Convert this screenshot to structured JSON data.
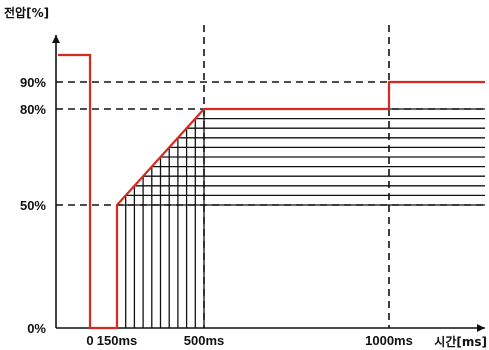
{
  "chart_data": {
    "type": "line",
    "title": "",
    "ylabel": "전압[%]",
    "xlabel": "시간[ms]",
    "xlim": [
      -40,
      1150
    ],
    "ylim": [
      0,
      100
    ],
    "x_ticks": [
      {
        "value": 0,
        "label": "0"
      },
      {
        "value": 150,
        "label": "150ms"
      },
      {
        "value": 500,
        "label": "500ms"
      },
      {
        "value": 1000,
        "label": "1000ms"
      }
    ],
    "y_ticks": [
      {
        "value": 0,
        "label": "0%"
      },
      {
        "value": 50,
        "label": "50%"
      },
      {
        "value": 80,
        "label": "80%"
      },
      {
        "value": 90,
        "label": "90%"
      }
    ],
    "reference_lines": {
      "horizontal": [
        50,
        80,
        90
      ],
      "vertical": [
        500,
        1000
      ]
    },
    "series": [
      {
        "color": "#d42a1f",
        "points": [
          {
            "x": -40,
            "y": 100
          },
          {
            "x": 0,
            "y": 100
          },
          {
            "x": 0,
            "y": 0
          },
          {
            "x": 150,
            "y": 0
          },
          {
            "x": 150,
            "y": 50
          },
          {
            "x": 500,
            "y": 80
          },
          {
            "x": 1000,
            "y": 80
          },
          {
            "x": 1000,
            "y": 90
          },
          {
            "x": 1150,
            "y": 90
          }
        ]
      }
    ],
    "steps": [
      {
        "start": 150,
        "level": 50
      },
      {
        "start": 185,
        "level": 53
      },
      {
        "start": 220,
        "level": 56
      },
      {
        "start": 255,
        "level": 59
      },
      {
        "start": 290,
        "level": 62
      },
      {
        "start": 325,
        "level": 65
      },
      {
        "start": 360,
        "level": 68
      },
      {
        "start": 395,
        "level": 71
      },
      {
        "start": 430,
        "level": 74
      },
      {
        "start": 465,
        "level": 77
      },
      {
        "start": 500,
        "level": 80
      }
    ],
    "step_end_x": 1150,
    "colors": {
      "main_line": "#d42a1f",
      "grid": "#111111",
      "axis": "#111111"
    }
  }
}
